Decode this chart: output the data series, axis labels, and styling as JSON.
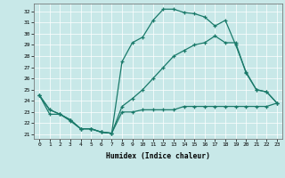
{
  "bg_color": "#c8e8e8",
  "line_color": "#1a7a6a",
  "xlabel": "Humidex (Indice chaleur)",
  "xlim": [
    -0.5,
    23.5
  ],
  "ylim": [
    20.6,
    32.7
  ],
  "yticks": [
    21,
    22,
    23,
    24,
    25,
    26,
    27,
    28,
    29,
    30,
    31,
    32
  ],
  "xticks": [
    0,
    1,
    2,
    3,
    4,
    5,
    6,
    7,
    8,
    9,
    10,
    11,
    12,
    13,
    14,
    15,
    16,
    17,
    18,
    19,
    20,
    21,
    22,
    23
  ],
  "curve_top": [
    24.5,
    23.2,
    22.8,
    22.3,
    21.5,
    21.5,
    21.2,
    21.1,
    27.5,
    29.2,
    29.7,
    31.2,
    32.2,
    32.2,
    31.9,
    31.8,
    31.5,
    30.7,
    31.2,
    29.0,
    26.6,
    25.0,
    24.8,
    23.8
  ],
  "curve_mid": [
    24.5,
    23.2,
    22.8,
    22.3,
    21.5,
    21.5,
    21.2,
    21.1,
    23.5,
    24.2,
    25.0,
    26.0,
    27.0,
    28.0,
    28.5,
    29.0,
    29.2,
    29.8,
    29.2,
    29.2,
    26.5,
    25.0,
    24.8,
    23.8
  ],
  "curve_bot": [
    24.5,
    22.8,
    22.8,
    22.2,
    21.5,
    21.5,
    21.2,
    21.1,
    23.0,
    23.0,
    23.2,
    23.2,
    23.2,
    23.2,
    23.5,
    23.5,
    23.5,
    23.5,
    23.5,
    23.5,
    23.5,
    23.5,
    23.5,
    23.8
  ]
}
